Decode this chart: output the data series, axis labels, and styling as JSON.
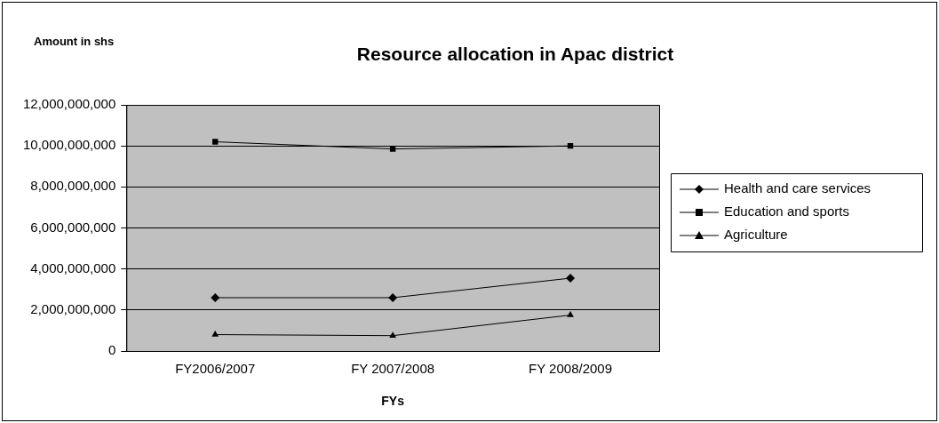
{
  "chart_data": {
    "type": "line",
    "title": "Resource allocation in Apac district",
    "ylabel": "Amount in shs",
    "xlabel": "FYs",
    "categories": [
      "FY2006/2007",
      "FY 2007/2008",
      "FY 2008/2009"
    ],
    "series": [
      {
        "name": "Health and care services",
        "color": "#000000",
        "marker": "diamond",
        "values": [
          2600000000,
          2600000000,
          3550000000
        ]
      },
      {
        "name": "Education and sports",
        "color": "#000000",
        "marker": "square",
        "values": [
          10200000000,
          9850000000,
          10000000000
        ]
      },
      {
        "name": "Agriculture",
        "color": "#000000",
        "marker": "triangle",
        "values": [
          800000000,
          750000000,
          1750000000
        ]
      }
    ],
    "ylim": [
      0,
      12000000000
    ],
    "yticks": [
      0,
      {
        "value": 2000000000,
        "label": "2,000,000,000"
      },
      {
        "value": 4000000000,
        "label": "4,000,000,000"
      },
      {
        "value": 6000000000,
        "label": "6,000,000,000"
      },
      {
        "value": 8000000000,
        "label": "8,000,000,000"
      },
      {
        "value": 10000000000,
        "label": "10,000,000,000"
      },
      {
        "value": 12000000000,
        "label": "12,000,000,000"
      }
    ],
    "grid": "y",
    "legend": "right",
    "line_style": "solid"
  }
}
